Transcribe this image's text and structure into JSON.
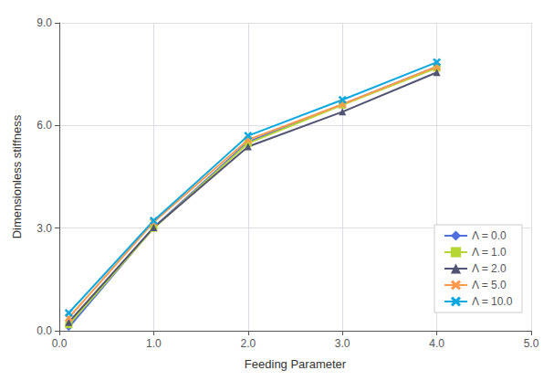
{
  "chart_data": {
    "type": "line",
    "x": [
      0.1,
      1.0,
      2.0,
      3.0,
      4.0
    ],
    "series": [
      {
        "name": "Λ = 0.0",
        "marker": "diamond",
        "values": [
          0.1,
          3.02,
          5.52,
          6.62,
          7.72
        ]
      },
      {
        "name": "Λ = 1.0",
        "marker": "square",
        "values": [
          0.18,
          3.0,
          5.48,
          6.6,
          7.68
        ]
      },
      {
        "name": "Λ = 2.0",
        "marker": "triangle",
        "values": [
          0.25,
          3.02,
          5.38,
          6.4,
          7.55
        ]
      },
      {
        "name": "Λ = 5.0",
        "marker": "x",
        "values": [
          0.38,
          3.18,
          5.58,
          6.62,
          7.72
        ]
      },
      {
        "name": "Λ = 10.0",
        "marker": "x",
        "values": [
          0.52,
          3.22,
          5.7,
          6.75,
          7.85
        ]
      }
    ],
    "xlabel": "Feeding Parameter",
    "ylabel": "Dimensionless stiffness",
    "xlim": [
      0.0,
      5.0
    ],
    "ylim": [
      0.0,
      9.0
    ],
    "xticks": [
      {
        "value": 0,
        "label": "0.0"
      },
      {
        "value": 1,
        "label": "1.0"
      },
      {
        "value": 2,
        "label": "2.0"
      },
      {
        "value": 3,
        "label": "3.0"
      },
      {
        "value": 4,
        "label": "4.0"
      },
      {
        "value": 5,
        "label": "5.0"
      }
    ],
    "yticks": [
      {
        "value": 0,
        "label": "0.0"
      },
      {
        "value": 3,
        "label": "3.0"
      },
      {
        "value": 6,
        "label": "6.0"
      },
      {
        "value": 9,
        "label": "9.0"
      }
    ],
    "grid": true,
    "legend": "lower right"
  }
}
